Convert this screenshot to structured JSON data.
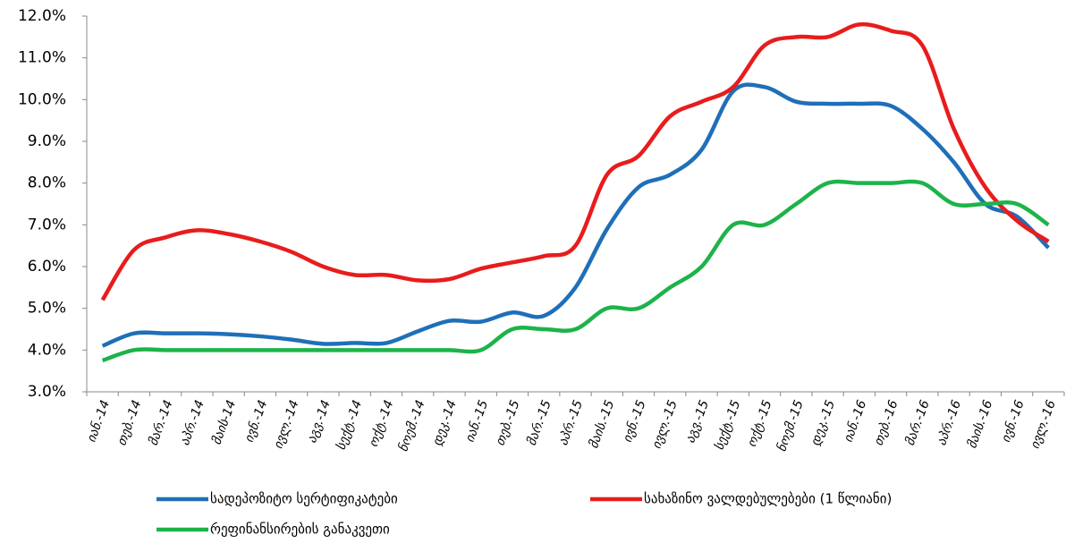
{
  "chart_data": {
    "type": "line",
    "categories": [
      "იან.-14",
      "თებ.-14",
      "მარ.-14",
      "აპრ.-14",
      "მაის-14",
      "ივნ.-14",
      "ივლ.-14",
      "აგვ.-14",
      "სექტ.-14",
      "ოქტ.-14",
      "ნოემ.-14",
      "დეკ.-14",
      "იან.-15",
      "თებ.-15",
      "მარ.-15",
      "აპრ.-15",
      "მაის.-15",
      "ივნ.-15",
      "ივლ.-15",
      "აგვ.-15",
      "სექტ.-15",
      "ოქტ.-15",
      "ნოემ.-15",
      "დეკ.-15",
      "იან.-16",
      "თებ.-16",
      "მარ.-16",
      "აპრ.-16",
      "მაის.-16",
      "ივნ.-16",
      "ივლ.-16"
    ],
    "series": [
      {
        "name": "სადეპოზიტო სერტიფიკატები",
        "color": "#1f6fb8",
        "values": [
          4.1,
          4.4,
          4.4,
          4.4,
          4.38,
          4.33,
          4.25,
          4.15,
          4.17,
          4.17,
          4.45,
          4.7,
          4.68,
          4.9,
          4.82,
          5.5,
          6.9,
          7.9,
          8.2,
          8.8,
          10.2,
          10.3,
          9.95,
          9.9,
          9.9,
          9.85,
          9.3,
          8.5,
          7.5,
          7.2,
          6.45
        ]
      },
      {
        "name": "სახაზინო ვალდებულებები (1 წლიანი)",
        "color": "#e81c1c",
        "values": [
          5.2,
          6.4,
          6.7,
          6.87,
          6.78,
          6.6,
          6.35,
          6.0,
          5.8,
          5.8,
          5.67,
          5.7,
          5.95,
          6.1,
          6.25,
          6.5,
          8.2,
          8.65,
          9.6,
          9.95,
          10.3,
          11.3,
          11.5,
          11.5,
          11.8,
          11.65,
          11.3,
          9.3,
          7.9,
          7.1,
          6.6
        ]
      },
      {
        "name": "რეფინანსირების განაკვეთი",
        "color": "#1db34a",
        "values": [
          3.75,
          4.0,
          4.0,
          4.0,
          4.0,
          4.0,
          4.0,
          4.0,
          4.0,
          4.0,
          4.0,
          4.0,
          4.0,
          4.5,
          4.5,
          4.5,
          5.0,
          5.0,
          5.5,
          6.0,
          7.0,
          7.0,
          7.5,
          8.0,
          8.0,
          8.0,
          8.0,
          7.5,
          7.5,
          7.5,
          7.0
        ]
      }
    ],
    "ylim": [
      3,
      12
    ],
    "yticks": [
      {
        "value": 3,
        "label": "3.0%"
      },
      {
        "value": 4,
        "label": "4.0%"
      },
      {
        "value": 5,
        "label": "5.0%"
      },
      {
        "value": 6,
        "label": "6.0%"
      },
      {
        "value": 7,
        "label": "7.0%"
      },
      {
        "value": 8,
        "label": "8.0%"
      },
      {
        "value": 9,
        "label": "9.0%"
      },
      {
        "value": 10,
        "label": "10.0%"
      },
      {
        "value": 11,
        "label": "11.0%"
      },
      {
        "value": 12,
        "label": "12.0%"
      }
    ],
    "grid": false,
    "legend": "bottom"
  }
}
